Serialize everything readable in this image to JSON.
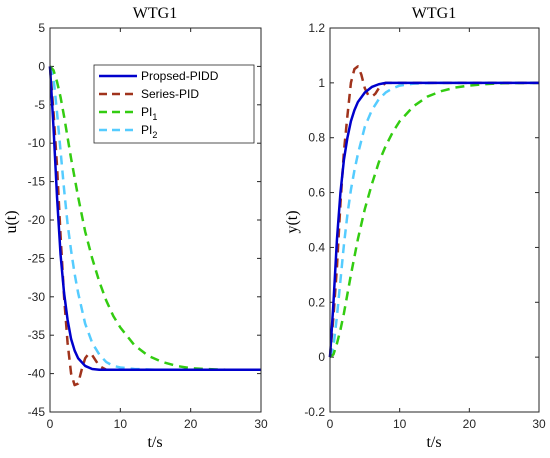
{
  "chart_data": [
    {
      "type": "line",
      "title": "WTG1",
      "xlabel": "t/s",
      "ylabel": "u(t)",
      "xlim": [
        0,
        30
      ],
      "ylim": [
        -45,
        5
      ],
      "xticks": [
        "0",
        "10",
        "20",
        "30"
      ],
      "yticks": [
        "5",
        "0",
        "-5",
        "-10",
        "-15",
        "-20",
        "-25",
        "-30",
        "-35",
        "-40",
        "-45"
      ],
      "legend": {
        "position": "top-right",
        "entries": [
          {
            "label": "Propsed-PIDD",
            "sub": ""
          },
          {
            "label": "Series-PID",
            "sub": ""
          },
          {
            "label": "PI",
            "sub": "1"
          },
          {
            "label": "PI",
            "sub": "2"
          }
        ]
      },
      "series": [
        {
          "name": "Propsed-PIDD",
          "color": "#0000cc",
          "style": "solid",
          "x": [
            0,
            0.5,
            1,
            1.5,
            2,
            2.5,
            3,
            3.5,
            4,
            5,
            6,
            7,
            8,
            10,
            15,
            20,
            25,
            30
          ],
          "y": [
            0,
            -8,
            -17,
            -24.5,
            -29.5,
            -33,
            -35.5,
            -37,
            -38,
            -39,
            -39.4,
            -39.5,
            -39.5,
            -39.5,
            -39.5,
            -39.5,
            -39.5,
            -39.5
          ]
        },
        {
          "name": "Series-PID",
          "color": "#a0331c",
          "style": "dashed",
          "x": [
            0,
            0.5,
            1,
            1.5,
            2,
            2.5,
            3,
            3.5,
            4,
            4.5,
            5,
            5.5,
            6,
            6.5,
            7,
            8,
            10,
            15,
            20,
            25,
            30
          ],
          "y": [
            0,
            -6,
            -13,
            -22,
            -30,
            -36,
            -40,
            -41.5,
            -41.3,
            -39.5,
            -38,
            -37.4,
            -37.6,
            -38.3,
            -39,
            -39.5,
            -39.5,
            -39.5,
            -39.5,
            -39.5,
            -39.5
          ]
        },
        {
          "name": "PI1",
          "color": "#33cc11",
          "style": "dashed",
          "x": [
            0,
            0.5,
            1,
            1.5,
            2,
            3,
            4,
            5,
            6,
            7,
            8,
            9,
            10,
            12,
            14,
            16,
            18,
            20,
            22,
            25,
            30
          ],
          "y": [
            0,
            -0.5,
            -2,
            -4,
            -6.5,
            -12,
            -17,
            -21.5,
            -25,
            -28,
            -30.5,
            -32.5,
            -34,
            -36.3,
            -37.7,
            -38.5,
            -39,
            -39.3,
            -39.4,
            -39.5,
            -39.5
          ]
        },
        {
          "name": "PI2",
          "color": "#55ccff",
          "style": "dashed",
          "x": [
            0,
            0.5,
            1,
            1.5,
            2,
            2.5,
            3,
            3.5,
            4,
            5,
            6,
            7,
            8,
            9,
            10,
            12,
            15,
            20,
            25,
            30
          ],
          "y": [
            0,
            -1.5,
            -6,
            -11,
            -16,
            -20.5,
            -24,
            -27,
            -29.5,
            -33.5,
            -36,
            -37.5,
            -38.5,
            -39,
            -39.2,
            -39.4,
            -39.5,
            -39.5,
            -39.5,
            -39.5
          ]
        }
      ]
    },
    {
      "type": "line",
      "title": "WTG1",
      "xlabel": "t/s",
      "ylabel": "y(t)",
      "xlim": [
        0,
        30
      ],
      "ylim": [
        -0.2,
        1.2
      ],
      "xticks": [
        "0",
        "10",
        "20",
        "30"
      ],
      "yticks": [
        "1.2",
        "1",
        "0.8",
        "0.6",
        "0.4",
        "0.2",
        "0",
        "-0.2"
      ],
      "series": [
        {
          "name": "Propsed-PIDD",
          "color": "#0000cc",
          "style": "solid",
          "x": [
            0,
            0.5,
            1,
            1.5,
            2,
            2.5,
            3,
            3.5,
            4,
            5,
            6,
            7,
            8,
            10,
            15,
            20,
            25,
            30
          ],
          "y": [
            0,
            0.2,
            0.43,
            0.6,
            0.72,
            0.8,
            0.86,
            0.9,
            0.93,
            0.965,
            0.985,
            0.995,
            1.0,
            1.0,
            1.0,
            1.0,
            1.0,
            1.0
          ]
        },
        {
          "name": "Series-PID",
          "color": "#a0331c",
          "style": "dashed",
          "x": [
            0,
            0.5,
            1,
            1.5,
            2,
            2.5,
            3,
            3.5,
            4,
            4.5,
            5,
            5.5,
            6,
            6.5,
            7,
            8,
            10,
            15,
            20,
            25,
            30
          ],
          "y": [
            0,
            0.15,
            0.33,
            0.56,
            0.75,
            0.88,
            1.0,
            1.05,
            1.06,
            1.03,
            0.98,
            0.955,
            0.95,
            0.96,
            0.98,
            1.0,
            1.0,
            1.0,
            1.0,
            1.0,
            1.0
          ]
        },
        {
          "name": "PI1",
          "color": "#33cc11",
          "style": "dashed",
          "x": [
            0,
            0.5,
            1,
            1.5,
            2,
            3,
            4,
            5,
            6,
            7,
            8,
            9,
            10,
            12,
            14,
            16,
            18,
            20,
            22,
            25,
            30
          ],
          "y": [
            0,
            0.01,
            0.05,
            0.1,
            0.16,
            0.3,
            0.43,
            0.54,
            0.63,
            0.71,
            0.77,
            0.82,
            0.86,
            0.915,
            0.95,
            0.97,
            0.983,
            0.99,
            0.995,
            0.999,
            1.0
          ]
        },
        {
          "name": "PI2",
          "color": "#55ccff",
          "style": "dashed",
          "x": [
            0,
            0.5,
            1,
            1.5,
            2,
            2.5,
            3,
            3.5,
            4,
            5,
            6,
            7,
            8,
            9,
            10,
            12,
            15,
            20,
            25,
            30
          ],
          "y": [
            0,
            0.04,
            0.15,
            0.28,
            0.41,
            0.52,
            0.61,
            0.68,
            0.74,
            0.84,
            0.9,
            0.94,
            0.965,
            0.98,
            0.99,
            0.997,
            1.0,
            1.0,
            1.0,
            1.0
          ]
        }
      ]
    }
  ]
}
